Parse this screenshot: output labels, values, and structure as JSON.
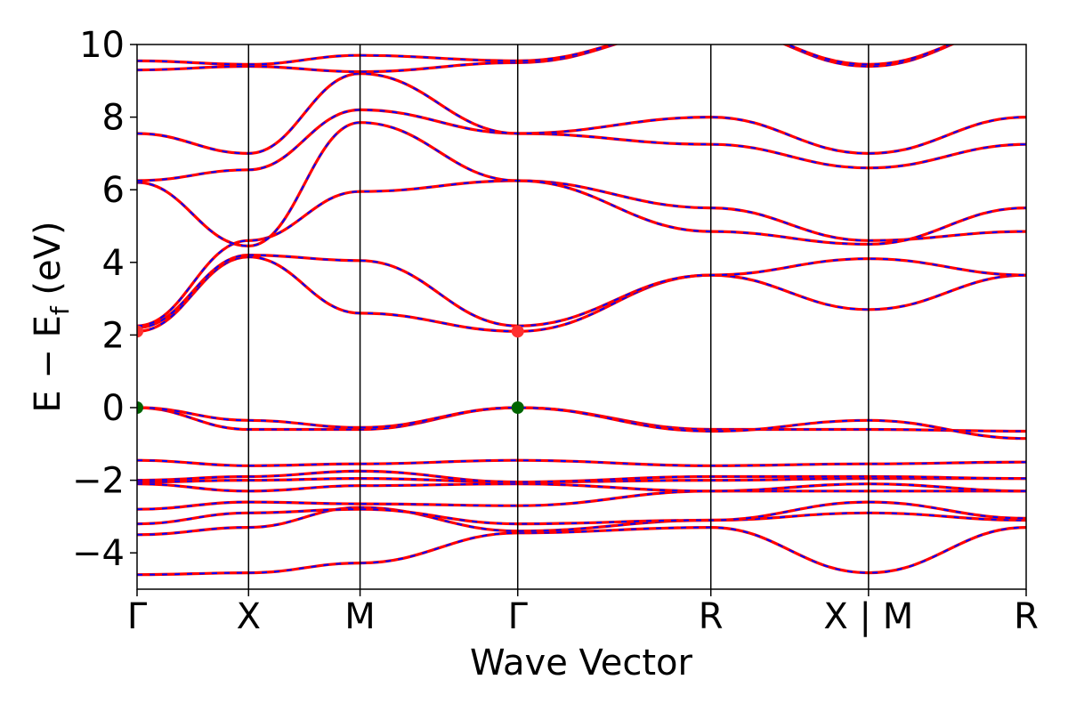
{
  "chart_data": {
    "type": "line",
    "title": "",
    "xlabel": "Wave Vector",
    "ylabel": "E − E",
    "ylabel_sub": "f",
    "ylabel_unit": " (eV)",
    "ylim": [
      -5,
      10
    ],
    "yticks": [
      -4,
      -2,
      0,
      2,
      4,
      6,
      8,
      10
    ],
    "ytick_labels": [
      "−4",
      "−2",
      "0",
      "2",
      "4",
      "6",
      "8",
      "10"
    ],
    "kpath": [
      {
        "label": "Γ",
        "x": 0.0
      },
      {
        "label": "X",
        "x": 0.5
      },
      {
        "label": "M",
        "x": 1.0
      },
      {
        "label": "Γ",
        "x": 1.707
      },
      {
        "label": "R",
        "x": 2.573
      },
      {
        "label": "X | M",
        "x": 3.28
      },
      {
        "label": "R",
        "x": 3.987
      }
    ],
    "xlim": [
      0,
      3.987
    ],
    "grid": false,
    "legend": "none",
    "series_style": {
      "primary_color": "#ff0000",
      "overlay_color": "#0000ff",
      "overlay_dash": "dashed"
    },
    "markers": [
      {
        "kind": "VBM",
        "x": 0.0,
        "y": 0.0,
        "color": "#006400"
      },
      {
        "kind": "VBM",
        "x": 1.707,
        "y": 0.0,
        "color": "#006400"
      },
      {
        "kind": "CBM",
        "x": 0.0,
        "y": 2.1,
        "color": "#ff3030"
      },
      {
        "kind": "CBM",
        "x": 1.707,
        "y": 2.1,
        "color": "#ff3030"
      }
    ],
    "bands": [
      {
        "x": [
          0,
          0.5,
          1.0,
          1.707,
          2.573,
          3.28,
          3.987
        ],
        "y": [
          -4.6,
          -4.55,
          -4.28,
          -3.45,
          -3.3,
          -4.55,
          -3.3
        ]
      },
      {
        "x": [
          0,
          0.5,
          1.0,
          1.707,
          2.573,
          3.28,
          3.987
        ],
        "y": [
          -3.5,
          -3.3,
          -2.75,
          -3.4,
          -3.1,
          -2.9,
          -3.1
        ]
      },
      {
        "x": [
          0,
          0.5,
          1.0,
          1.707,
          2.573,
          3.28,
          3.987
        ],
        "y": [
          -3.2,
          -2.9,
          -2.8,
          -3.2,
          -3.1,
          -2.6,
          -3.05
        ]
      },
      {
        "x": [
          0,
          0.5,
          1.0,
          1.707,
          2.573,
          3.28,
          3.987
        ],
        "y": [
          -2.8,
          -2.6,
          -2.65,
          -2.7,
          -2.3,
          -2.3,
          -2.3
        ]
      },
      {
        "x": [
          0,
          0.5,
          1.0,
          1.707,
          2.573,
          3.28,
          3.987
        ],
        "y": [
          -2.1,
          -2.3,
          -2.15,
          -2.1,
          -2.3,
          -2.1,
          -2.3
        ]
      },
      {
        "x": [
          0,
          0.5,
          1.0,
          1.707,
          2.573,
          3.28,
          3.987
        ],
        "y": [
          -2.05,
          -2.0,
          -1.95,
          -2.05,
          -2.0,
          -1.95,
          -1.95
        ]
      },
      {
        "x": [
          0,
          0.5,
          1.0,
          1.707,
          2.573,
          3.28,
          3.987
        ],
        "y": [
          -2.0,
          -1.9,
          -1.75,
          -2.05,
          -1.9,
          -1.9,
          -1.95
        ]
      },
      {
        "x": [
          0,
          0.5,
          1.0,
          1.707,
          2.573,
          3.28,
          3.987
        ],
        "y": [
          -1.45,
          -1.6,
          -1.55,
          -1.45,
          -1.6,
          -1.55,
          -1.5
        ]
      },
      {
        "x": [
          0,
          0.5,
          1.0,
          1.707,
          2.573,
          3.28,
          3.987
        ],
        "y": [
          0.0,
          -0.6,
          -0.6,
          0.0,
          -0.6,
          -0.6,
          -0.65
        ]
      },
      {
        "x": [
          0,
          0.5,
          1.0,
          1.707,
          2.573,
          3.28,
          3.987
        ],
        "y": [
          0.0,
          -0.35,
          -0.55,
          0.0,
          -0.65,
          -0.35,
          -0.85
        ]
      },
      {
        "x": [
          0,
          0.5,
          1.0,
          1.707,
          2.573,
          3.28,
          3.987
        ],
        "y": [
          2.1,
          4.15,
          2.6,
          2.1,
          3.65,
          2.7,
          3.65
        ]
      },
      {
        "x": [
          0,
          0.5,
          1.0,
          1.707,
          2.573,
          3.28,
          3.987
        ],
        "y": [
          2.2,
          4.2,
          4.05,
          2.25,
          3.65,
          4.1,
          3.65
        ]
      },
      {
        "x": [
          0,
          0.5,
          1.0,
          1.707,
          2.573,
          3.28,
          3.987
        ],
        "y": [
          2.25,
          4.6,
          5.95,
          6.25,
          5.5,
          4.6,
          4.85
        ]
      },
      {
        "x": [
          0,
          0.5,
          1.0,
          1.707,
          2.573,
          3.28,
          3.987
        ],
        "y": [
          6.2,
          4.45,
          7.85,
          6.25,
          4.85,
          4.5,
          5.5
        ]
      },
      {
        "x": [
          0,
          0.5,
          1.0,
          1.707,
          2.573,
          3.28,
          3.987
        ],
        "y": [
          6.25,
          6.55,
          8.2,
          7.55,
          7.25,
          6.6,
          7.25
        ]
      },
      {
        "x": [
          0,
          0.5,
          1.0,
          1.707,
          2.573,
          3.28,
          3.987
        ],
        "y": [
          7.55,
          7.0,
          9.2,
          7.55,
          8.0,
          7.0,
          8.0
        ]
      },
      {
        "x": [
          0,
          0.5,
          1.0,
          1.707,
          2.573,
          3.28,
          3.987
        ],
        "y": [
          9.3,
          9.4,
          9.25,
          9.5,
          10.5,
          9.4,
          10.5
        ]
      },
      {
        "x": [
          0,
          0.5,
          1.0,
          1.707,
          2.573,
          3.28,
          3.987
        ],
        "y": [
          9.55,
          9.45,
          9.7,
          9.55,
          10.5,
          9.45,
          10.5
        ]
      }
    ]
  }
}
